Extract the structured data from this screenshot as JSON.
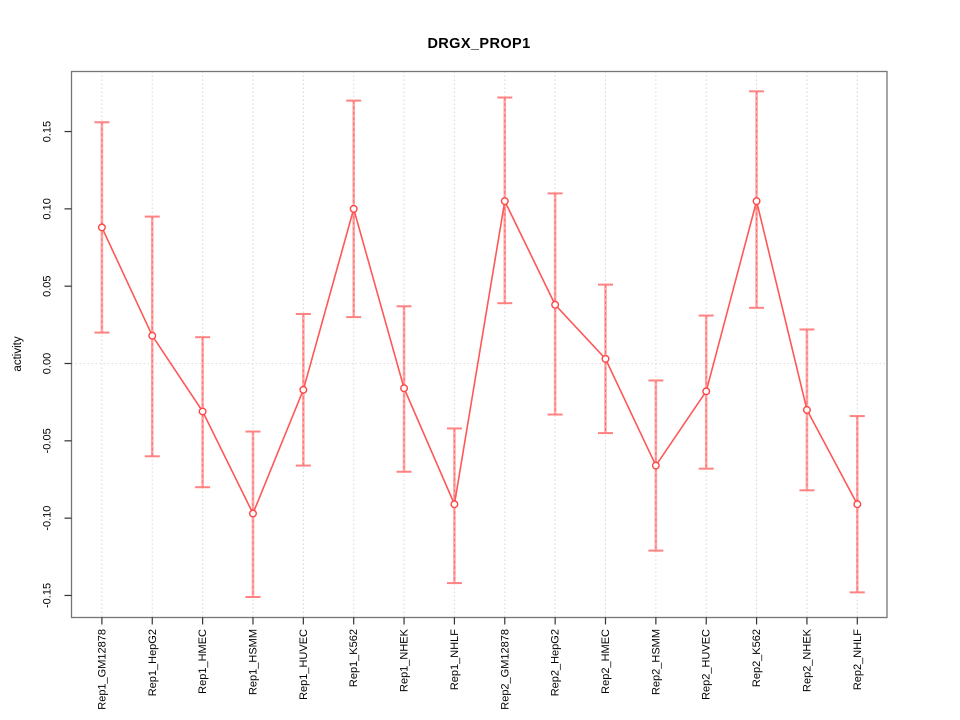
{
  "chart_data": {
    "type": "line",
    "title": "DRGX_PROP1",
    "xlabel": "",
    "ylabel": "activity",
    "legend": "none",
    "marker": "open-circle",
    "error_bars": true,
    "categories": [
      "Rep1_GM12878",
      "Rep1_HepG2",
      "Rep1_HMEC",
      "Rep1_HSMM",
      "Rep1_HUVEC",
      "Rep1_K562",
      "Rep1_NHEK",
      "Rep1_NHLF",
      "Rep2_GM12878",
      "Rep2_HepG2",
      "Rep2_HMEC",
      "Rep2_HSMM",
      "Rep2_HUVEC",
      "Rep2_K562",
      "Rep2_NHEK",
      "Rep2_NHLF"
    ],
    "series": [
      {
        "name": "activity",
        "values": [
          0.088,
          0.018,
          -0.031,
          -0.097,
          -0.017,
          0.1,
          -0.016,
          -0.091,
          0.105,
          0.038,
          0.003,
          -0.066,
          -0.018,
          0.105,
          -0.03,
          -0.091
        ],
        "ci_low": [
          0.02,
          -0.06,
          -0.08,
          -0.151,
          -0.066,
          0.03,
          -0.07,
          -0.142,
          0.039,
          -0.033,
          -0.045,
          -0.121,
          -0.068,
          0.036,
          -0.082,
          -0.148
        ],
        "ci_high": [
          0.156,
          0.095,
          0.017,
          -0.044,
          0.032,
          0.17,
          0.037,
          -0.042,
          0.172,
          0.11,
          0.051,
          -0.011,
          0.031,
          0.176,
          0.022,
          -0.034
        ]
      }
    ],
    "ylim": [
      -0.164,
      0.189
    ],
    "yticks": [
      -0.15,
      -0.1,
      -0.05,
      0.0,
      0.05,
      0.1,
      0.15
    ],
    "ytick_labels": [
      "-0.15",
      "-0.10",
      "-0.05",
      "0.00",
      "0.05",
      "0.10",
      "0.15"
    ],
    "grid": {
      "vertical_gridlines": "dotted at every category",
      "horizontal_gridlines": "dotted at zero only",
      "legend_position": "none"
    },
    "colors": {
      "series_line": "#ff5757",
      "marker_stroke": "#ff4545",
      "marker_fill": "#ffffff",
      "error_bar": "#ffa6a6",
      "error_bar_dash": "#ff6e6e",
      "error_cap": "#ff8282",
      "gridline": "#d8d8d8",
      "zero_line": "#dcdcdc",
      "axis_box": "#757575",
      "tick_mark": "#333333",
      "text": "#000000",
      "background": "#ffffff"
    }
  }
}
